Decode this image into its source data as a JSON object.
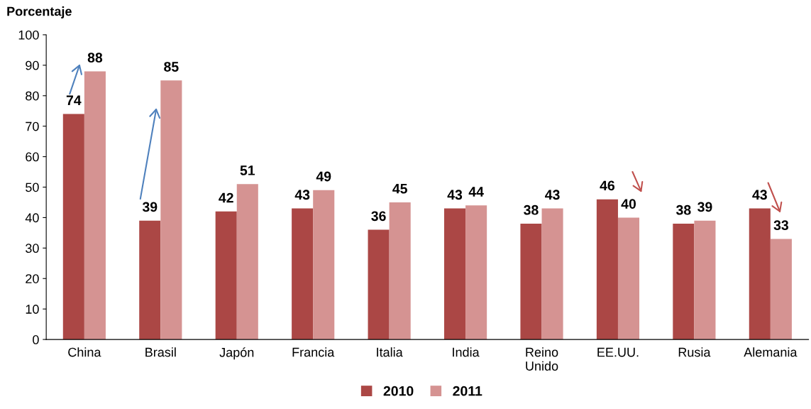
{
  "chart_data": {
    "type": "bar",
    "ylabel": "Porcentaje",
    "categories": [
      "China",
      "Brasil",
      "Japón",
      "Francia",
      "Italia",
      "India",
      "Reino\nUnido",
      "EE.UU.",
      "Rusia",
      "Alemania"
    ],
    "series": [
      {
        "name": "2010",
        "color": "#ab4745",
        "values": [
          74,
          39,
          42,
          43,
          36,
          43,
          38,
          46,
          38,
          43
        ]
      },
      {
        "name": "2011",
        "color": "#d59392",
        "values": [
          88,
          85,
          51,
          49,
          45,
          44,
          43,
          40,
          39,
          33
        ]
      }
    ],
    "ylim": [
      0,
      100
    ],
    "yticks": [
      0,
      10,
      20,
      30,
      40,
      50,
      60,
      70,
      80,
      90,
      100
    ],
    "data_labels": true,
    "grid": false,
    "legend": "bottom"
  }
}
